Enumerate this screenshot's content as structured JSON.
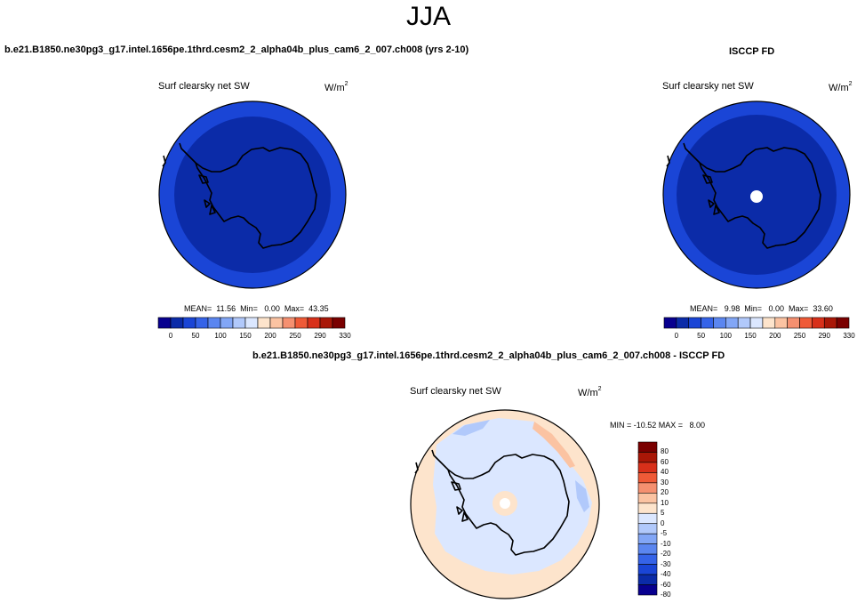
{
  "page_title": "JJA",
  "left_panel": {
    "case_title": "b.e21.B1850.ne30pg3_g17.intel.1656pe.1thrd.cesm2_2_alpha04b_plus_cam6_2_007.ch008 (yrs 2-10)",
    "plot_title": "Surf clearsky net SW",
    "units_base": "W/m",
    "units_exp": "2",
    "stats_text": "MEAN=  11.56  Min=   0.00  Max=  43.35",
    "colorbar_ticks": [
      "0",
      "50",
      "100",
      "150",
      "200",
      "250",
      "290",
      "330"
    ]
  },
  "right_panel": {
    "case_title": "ISCCP FD",
    "plot_title": "Surf clearsky net SW",
    "units_base": "W/m",
    "units_exp": "2",
    "stats_text": "MEAN=   9.98  Min=   0.00  Max=  33.60",
    "colorbar_ticks": [
      "0",
      "50",
      "100",
      "150",
      "200",
      "250",
      "290",
      "330"
    ]
  },
  "diff_panel": {
    "case_title": "b.e21.B1850.ne30pg3_g17.intel.1656pe.1thrd.cesm2_2_alpha04b_plus_cam6_2_007.ch008 - ISCCP FD",
    "plot_title": "Surf clearsky net SW",
    "units_base": "W/m",
    "units_exp": "2",
    "stats_text": "MIN = -10.52 MAX =   8.00",
    "colorbar_ticks": [
      "80",
      "60",
      "40",
      "30",
      "20",
      "10",
      "5",
      "0",
      "-5",
      "-10",
      "-20",
      "-30",
      "-40",
      "-60",
      "-80"
    ]
  },
  "colors": {
    "abs_colorbar": [
      "#08008f",
      "#0b2ba8",
      "#1a45d6",
      "#3563e8",
      "#5b86f0",
      "#82a6f6",
      "#b1c9fb",
      "#dbe7ff",
      "#fde4cc",
      "#fbc3a2",
      "#f59070",
      "#ef5a37",
      "#d8301a",
      "#a91707",
      "#7a0000"
    ],
    "diff_colorbar": [
      "#7a0000",
      "#a91707",
      "#d8301a",
      "#ef5a37",
      "#f59070",
      "#fbc3a2",
      "#fde4cc",
      "#dbe7ff",
      "#b1c9fb",
      "#82a6f6",
      "#5b86f0",
      "#3563e8",
      "#1a45d6",
      "#0b2ba8",
      "#08008f"
    ],
    "field_low": "#0b2ba8",
    "field_mid": "#1a45d6",
    "diff_background": "#fde4cc",
    "diff_negative": "#dbe7ff",
    "diff_neg_strong": "#b1c9fb",
    "diff_pos": "#fbc3a2"
  }
}
